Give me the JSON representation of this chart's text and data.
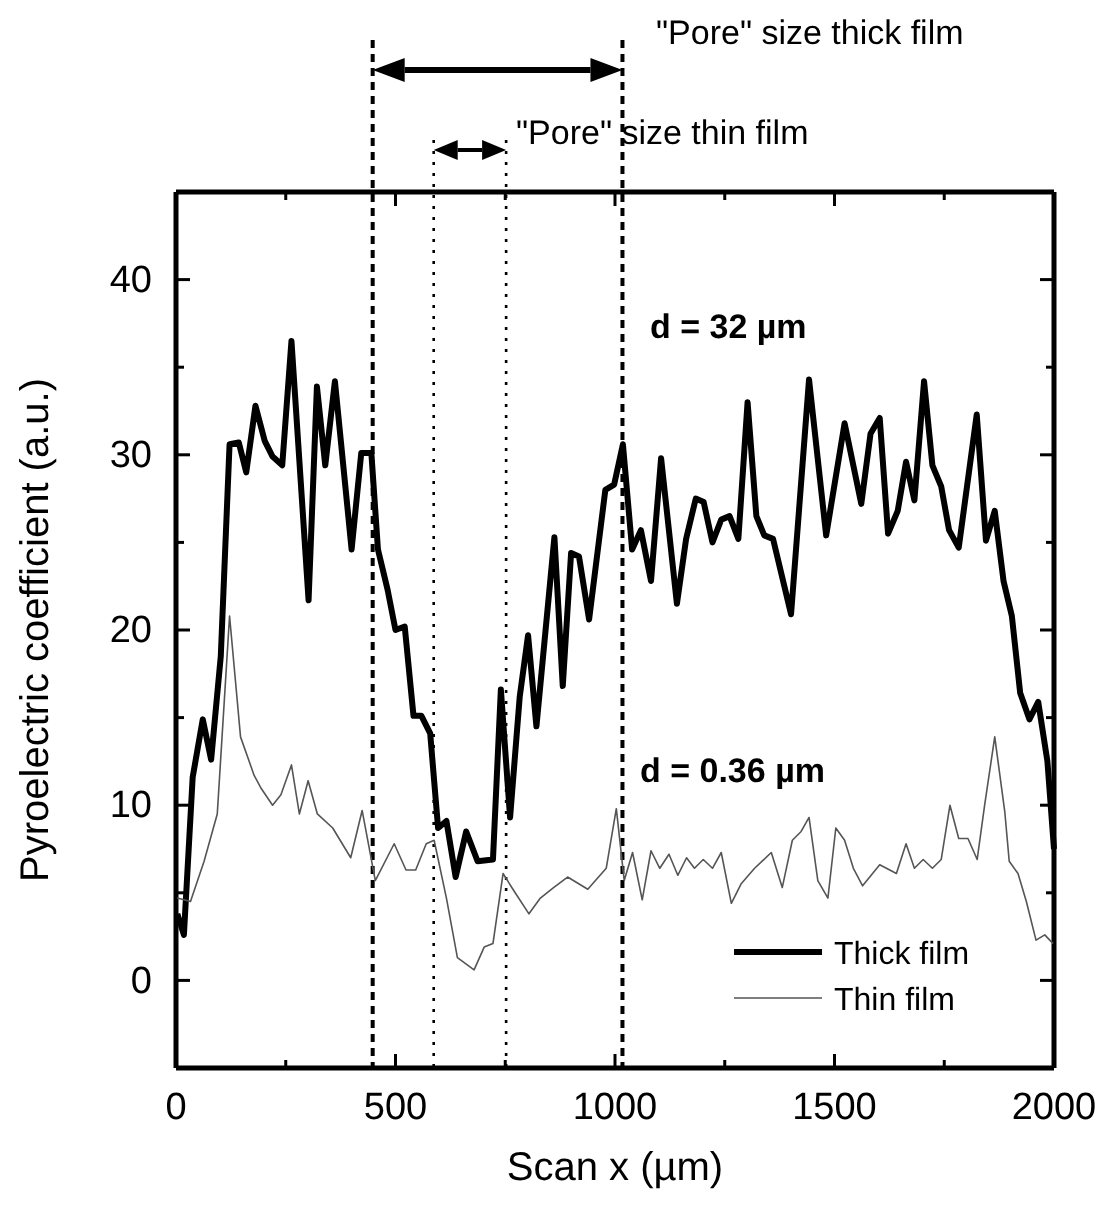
{
  "chart_data": {
    "type": "line",
    "xlabel": "Scan x (µm)",
    "ylabel": "Pyroelectric coefficient (a.u.)",
    "xlim": [
      0,
      2000
    ],
    "ylim": [
      -5,
      45
    ],
    "xticks": [
      0,
      {
        "value": 250,
        "label": null
      },
      500,
      {
        "value": 750,
        "label": null
      },
      1000,
      {
        "value": 1250,
        "label": null
      },
      1500,
      {
        "value": 1750,
        "label": null
      },
      2000
    ],
    "yticks": [
      0,
      {
        "value": 5,
        "label": null
      },
      10,
      {
        "value": 15,
        "label": null
      },
      20,
      {
        "value": 25,
        "label": null
      },
      30,
      {
        "value": 35,
        "label": null
      },
      40
    ],
    "legend": "bottom right",
    "grid": false,
    "marker": "none",
    "series": [
      {
        "name": "Thick film",
        "color": "#000000",
        "x": [
          3,
          18,
          38,
          61,
          80,
          102,
          122,
          143,
          160,
          181,
          202,
          220,
          242,
          263,
          302,
          321,
          340,
          362,
          400,
          422,
          445,
          460,
          482,
          500,
          521,
          541,
          559,
          579,
          597,
          616,
          637,
          661,
          687,
          722,
          740,
          761,
          783,
          802,
          821,
          862,
          881,
          900,
          918,
          941,
          978,
          998,
          1018,
          1039,
          1059,
          1082,
          1105,
          1141,
          1162,
          1184,
          1202,
          1222,
          1242,
          1261,
          1281,
          1302,
          1322,
          1340,
          1360,
          1401,
          1442,
          1481,
          1523,
          1561,
          1582,
          1603,
          1622,
          1644,
          1663,
          1682,
          1704,
          1723,
          1743,
          1761,
          1783,
          1824,
          1845,
          1865,
          1885,
          1904,
          1923,
          1944,
          1964,
          1985,
          2000
        ],
        "values": [
          3.8,
          2.6,
          11.6,
          14.9,
          12.6,
          18.5,
          30.6,
          30.7,
          29.0,
          32.8,
          30.8,
          29.9,
          29.4,
          36.5,
          21.7,
          33.9,
          29.4,
          34.2,
          24.6,
          30.1,
          30.1,
          24.6,
          22.3,
          20.0,
          20.2,
          15.1,
          15.1,
          14.1,
          8.7,
          9.1,
          5.9,
          8.5,
          6.8,
          6.9,
          16.6,
          9.3,
          16.2,
          19.7,
          14.5,
          25.3,
          16.8,
          24.4,
          24.2,
          20.6,
          28.0,
          28.3,
          30.6,
          24.6,
          25.7,
          22.8,
          29.8,
          21.5,
          25.2,
          27.5,
          27.3,
          25.0,
          26.3,
          26.5,
          25.2,
          33.0,
          26.5,
          25.4,
          25.2,
          20.9,
          34.3,
          25.4,
          31.8,
          27.2,
          31.2,
          32.1,
          25.5,
          26.8,
          29.6,
          27.4,
          34.2,
          29.4,
          28.2,
          25.7,
          24.7,
          32.3,
          25.1,
          26.8,
          22.8,
          20.8,
          16.4,
          14.9,
          15.9,
          12.5,
          7.5
        ]
      },
      {
        "name": "Thin film",
        "color": "#555555",
        "x": [
          3,
          33,
          64,
          94,
          122,
          147,
          178,
          193,
          220,
          239,
          263,
          281,
          301,
          322,
          357,
          398,
          424,
          454,
          497,
          524,
          546,
          570,
          588,
          616,
          641,
          679,
          702,
          722,
          745,
          770,
          804,
          830,
          860,
          892,
          938,
          980,
          1003,
          1021,
          1040,
          1062,
          1082,
          1102,
          1123,
          1143,
          1163,
          1181,
          1201,
          1222,
          1242,
          1265,
          1287,
          1318,
          1356,
          1381,
          1404,
          1424,
          1442,
          1462,
          1485,
          1503,
          1523,
          1543,
          1564,
          1603,
          1641,
          1663,
          1682,
          1702,
          1723,
          1743,
          1763,
          1783,
          1804,
          1825,
          1842,
          1865,
          1888,
          1898,
          1918,
          1937,
          1959,
          1979,
          1998
        ],
        "values": [
          4.7,
          4.5,
          6.8,
          9.5,
          20.8,
          13.9,
          11.7,
          11.0,
          10.0,
          10.6,
          12.3,
          9.5,
          11.4,
          9.5,
          8.7,
          7.0,
          9.7,
          5.7,
          7.8,
          6.3,
          6.3,
          7.8,
          8.0,
          4.7,
          1.3,
          0.6,
          1.9,
          2.1,
          6.1,
          5.1,
          3.8,
          4.7,
          5.3,
          5.9,
          5.2,
          6.4,
          9.8,
          5.7,
          7.3,
          4.6,
          7.4,
          6.4,
          7.2,
          6.0,
          7.0,
          6.4,
          6.9,
          6.4,
          7.3,
          4.4,
          5.5,
          6.4,
          7.3,
          5.3,
          8.0,
          8.5,
          9.3,
          5.7,
          4.7,
          8.7,
          8.0,
          6.4,
          5.4,
          6.6,
          6.1,
          7.8,
          6.4,
          6.9,
          6.4,
          6.9,
          10.0,
          8.1,
          8.1,
          6.9,
          10.0,
          13.9,
          9.6,
          6.8,
          6.1,
          4.5,
          2.3,
          2.6,
          2.1
        ]
      }
    ],
    "ref_lines": [
      {
        "axis": "x",
        "value": 448,
        "line_style": "dashed",
        "color": "#000000"
      },
      {
        "axis": "x",
        "value": 1017,
        "line_style": "dashed",
        "color": "#000000"
      },
      {
        "axis": "x",
        "value": 587,
        "line_style": "dotted",
        "color": "#000000"
      },
      {
        "axis": "x",
        "value": 752,
        "line_style": "dotted",
        "color": "#000000"
      }
    ],
    "annotations": [
      "\"Pore\" size thick film",
      "\"Pore\" size thin film",
      "d = 32 µm",
      "d = 0.36 µm"
    ]
  }
}
